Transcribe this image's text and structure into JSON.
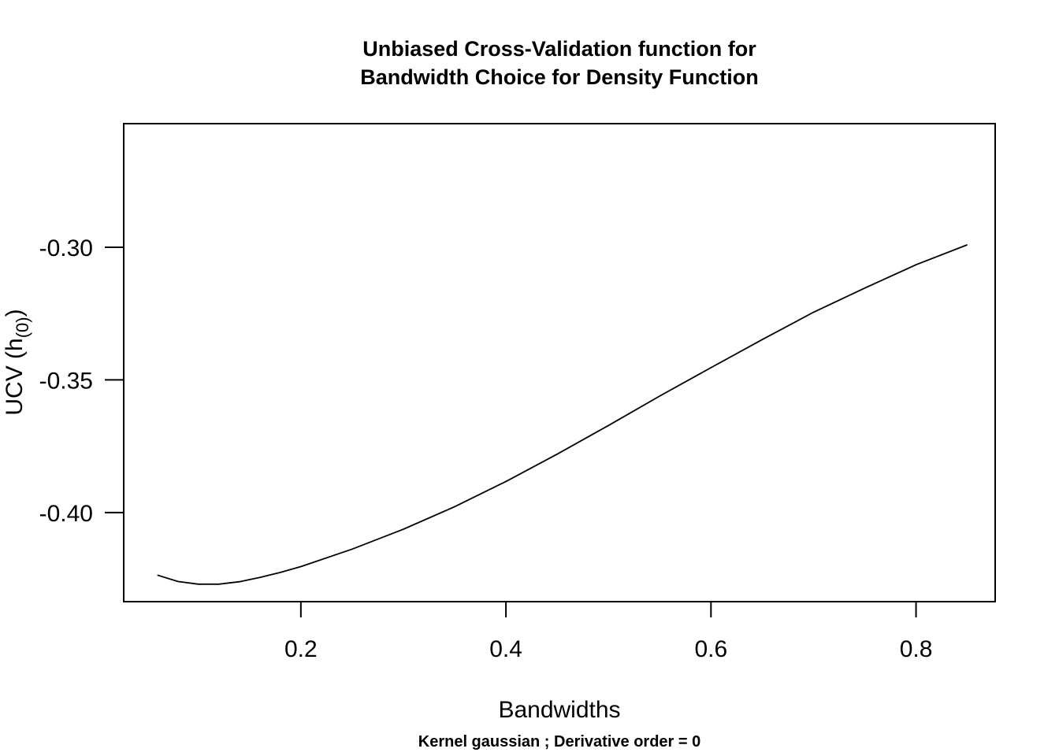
{
  "chart_data": {
    "type": "line",
    "title": "Unbiased Cross-Validation function for\nBandwidth Choice for Density Function",
    "xlabel": "Bandwidths",
    "ylabel": {
      "main": "UCV (h",
      "sub": "(0)",
      "close": ")"
    },
    "subtitle": "Kernel gaussian ; Derivative order =  0",
    "xlim": [
      0.0272,
      0.8772
    ],
    "ylim": [
      -0.4336,
      -0.2534
    ],
    "x_ticks": [
      0.2,
      0.4,
      0.6,
      0.8
    ],
    "x_tick_labels": [
      "0.2",
      "0.4",
      "0.6",
      "0.8"
    ],
    "y_ticks": [
      -0.3,
      -0.35,
      -0.4
    ],
    "y_tick_labels": [
      "-0.30",
      "-0.35",
      "-0.40"
    ],
    "grid": false,
    "line_color": "#000000",
    "series": [
      {
        "x": [
          0.06,
          0.08,
          0.1,
          0.12,
          0.14,
          0.16,
          0.18,
          0.2,
          0.25,
          0.3,
          0.35,
          0.4,
          0.45,
          0.5,
          0.55,
          0.6,
          0.65,
          0.7,
          0.75,
          0.8,
          0.85
        ],
        "y": [
          -0.4236,
          -0.426,
          -0.427,
          -0.427,
          -0.4261,
          -0.4245,
          -0.4226,
          -0.4204,
          -0.4138,
          -0.4063,
          -0.3978,
          -0.3883,
          -0.378,
          -0.3672,
          -0.3561,
          -0.3454,
          -0.3348,
          -0.3245,
          -0.3154,
          -0.3066,
          -0.2991
        ]
      }
    ]
  }
}
